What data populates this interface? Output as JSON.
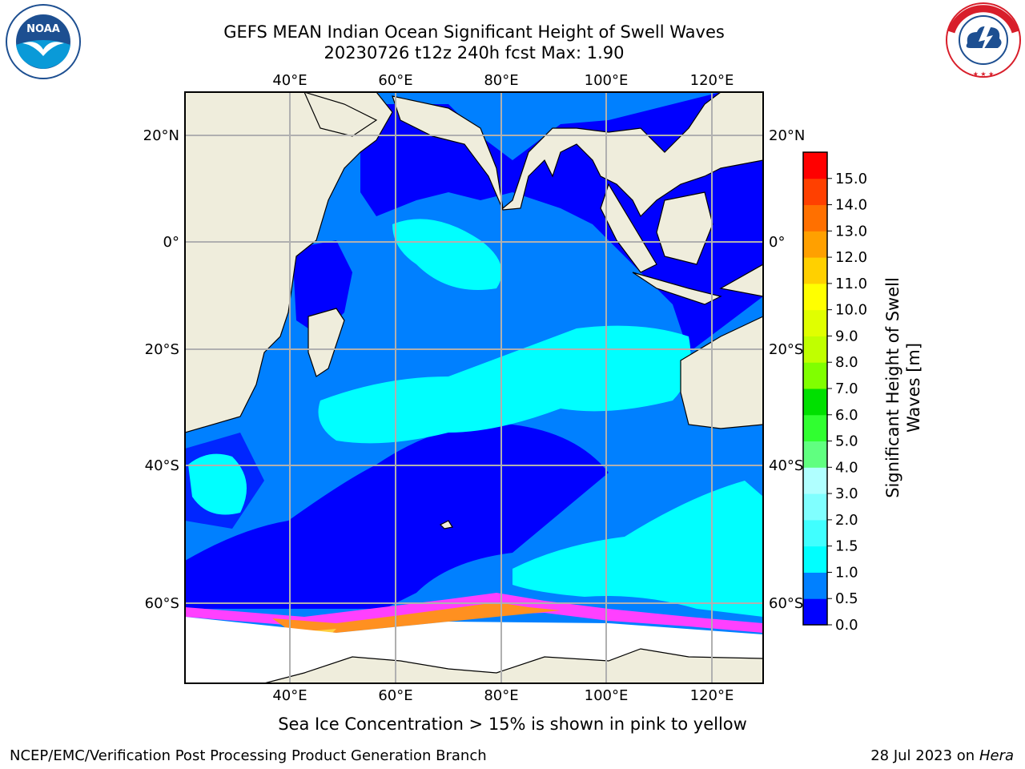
{
  "header": {
    "title_line1": "GEFS MEAN Indian Ocean Significant Height of Swell Waves",
    "title_line2": "20230726 t12z 240h fcst   Max: 1.90"
  },
  "logos": {
    "left": {
      "name": "NOAA",
      "ring_text": "NATIONAL OCEANIC AND ATMOSPHERIC ADMINISTRATION · U.S. DEPARTMENT OF COMMERCE"
    },
    "right": {
      "name": "National Weather Service",
      "ring_text": "NATIONAL WEATHER SERVICE"
    }
  },
  "map": {
    "lon_range": [
      20,
      130
    ],
    "lat_range": [
      -72,
      28
    ],
    "lon_ticks": [
      "40°E",
      "60°E",
      "80°E",
      "100°E",
      "120°E"
    ],
    "lat_ticks_left": [
      "20°N",
      "0°",
      "20°S",
      "40°S",
      "60°S"
    ],
    "lat_ticks_right": [
      "20°N",
      "0°",
      "20°S",
      "40°S",
      "60°S"
    ],
    "gridlines": true
  },
  "colorbar": {
    "label_line1": "Significant Height of Swell",
    "label_line2": "Waves [m]",
    "ticks": [
      "0.0",
      "0.5",
      "1.0",
      "1.5",
      "2.0",
      "3.0",
      "4.0",
      "5.0",
      "6.0",
      "7.0",
      "8.0",
      "9.0",
      "10.0",
      "11.0",
      "12.0",
      "13.0",
      "14.0",
      "15.0"
    ],
    "colors": [
      "#0000ff",
      "#0080ff",
      "#00ffff",
      "#40ffff",
      "#80ffff",
      "#b0ffff",
      "#60ff80",
      "#30ff30",
      "#00e000",
      "#80ff00",
      "#c0ff00",
      "#e0ff00",
      "#ffff00",
      "#ffd000",
      "#ffa000",
      "#ff7000",
      "#ff4000",
      "#ff0000"
    ]
  },
  "caption": "Sea Ice Concentration > 15% is shown in pink to yellow",
  "footer": {
    "left": "NCEP/EMC/Verification Post Processing Product Generation Branch",
    "right_prefix": "28 Jul 2023 on ",
    "right_host": "Hera"
  }
}
